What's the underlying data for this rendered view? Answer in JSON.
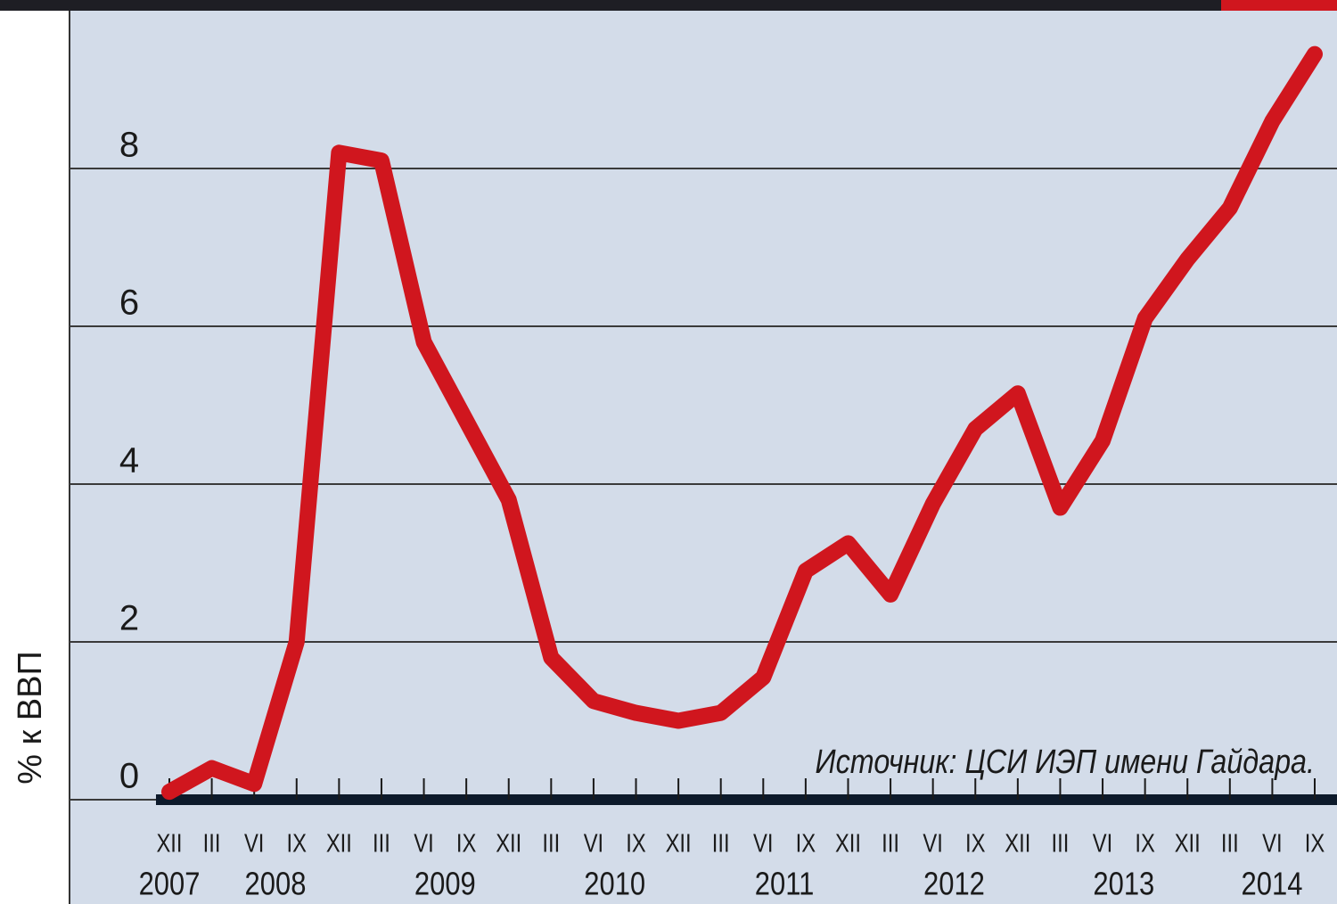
{
  "chart_data": {
    "type": "line",
    "y_axis_label": "% к ВВП",
    "annotation": "Источник: ЦСИ ИЭП имени Гайдара.",
    "categories": [
      "XII",
      "III",
      "VI",
      "IX",
      "XII",
      "III",
      "VI",
      "IX",
      "XII",
      "III",
      "VI",
      "IX",
      "XII",
      "III",
      "VI",
      "IX",
      "XII",
      "III",
      "VI",
      "IX",
      "XII",
      "III",
      "VI",
      "IX",
      "XII",
      "III",
      "VI",
      "IX"
    ],
    "year_labels": [
      "2007",
      "2008",
      "2009",
      "2010",
      "2011",
      "2012",
      "2013",
      "2014"
    ],
    "series": [
      {
        "color": "#d0161e",
        "values": [
          0.1,
          0.4,
          0.2,
          2.0,
          8.2,
          8.1,
          5.8,
          4.8,
          3.8,
          1.8,
          1.25,
          1.1,
          1.0,
          1.1,
          1.55,
          2.9,
          3.25,
          2.6,
          3.75,
          4.7,
          5.15,
          3.7,
          4.55,
          6.1,
          6.85,
          7.5,
          8.6,
          9.45
        ]
      }
    ],
    "ylim": [
      0,
      10
    ],
    "yticks": [
      0,
      2,
      4,
      6,
      8
    ],
    "grid": true
  }
}
